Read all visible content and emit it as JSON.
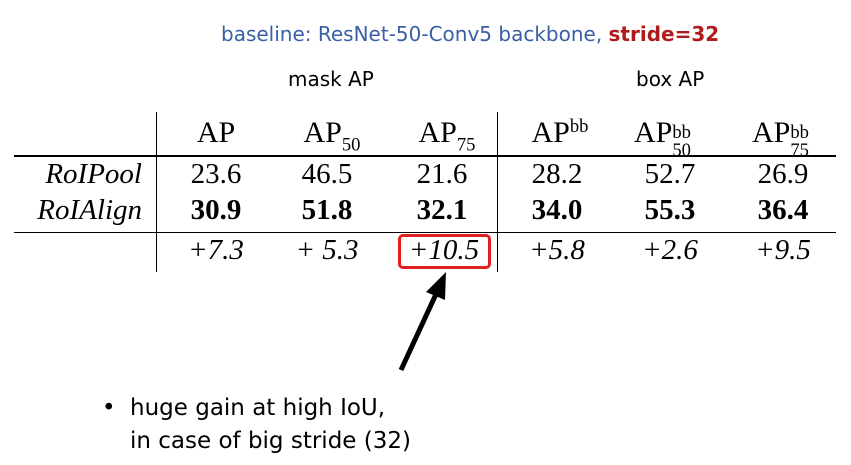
{
  "caption": {
    "prefix": "baseline: ResNet-50-Conv5 backbone, ",
    "stride": "stride=32"
  },
  "groups": {
    "mask": "mask AP",
    "box": "box AP"
  },
  "headers": {
    "ap": "AP",
    "ap50_base": "AP",
    "ap50_sub": "50",
    "ap75_base": "AP",
    "ap75_sub": "75",
    "apbb_base": "AP",
    "apbb_sup": "bb",
    "apbb50_base": "AP",
    "apbb50_sup": "bb",
    "apbb50_sub": "50",
    "apbb75_base": "AP",
    "apbb75_sup": "bb",
    "apbb75_sub": "75"
  },
  "rows": [
    {
      "label": "RoIPool",
      "values": [
        "23.6",
        "46.5",
        "21.6",
        "28.2",
        "52.7",
        "26.9"
      ]
    },
    {
      "label": "RoIAlign",
      "values": [
        "30.9",
        "51.8",
        "32.1",
        "34.0",
        "55.3",
        "36.4"
      ]
    },
    {
      "label": "",
      "values": [
        "+7.3",
        "+ 5.3",
        "+10.5",
        "+5.8",
        "+2.6",
        "+9.5"
      ]
    }
  ],
  "bullet": {
    "symbol": "•",
    "line1": "huge gain at high IoU,",
    "line2": "in case of big stride (32)"
  },
  "colors": {
    "caption_blue": "#3a5fa6",
    "caption_red": "#b01a1a",
    "highlight": "#e02020"
  }
}
